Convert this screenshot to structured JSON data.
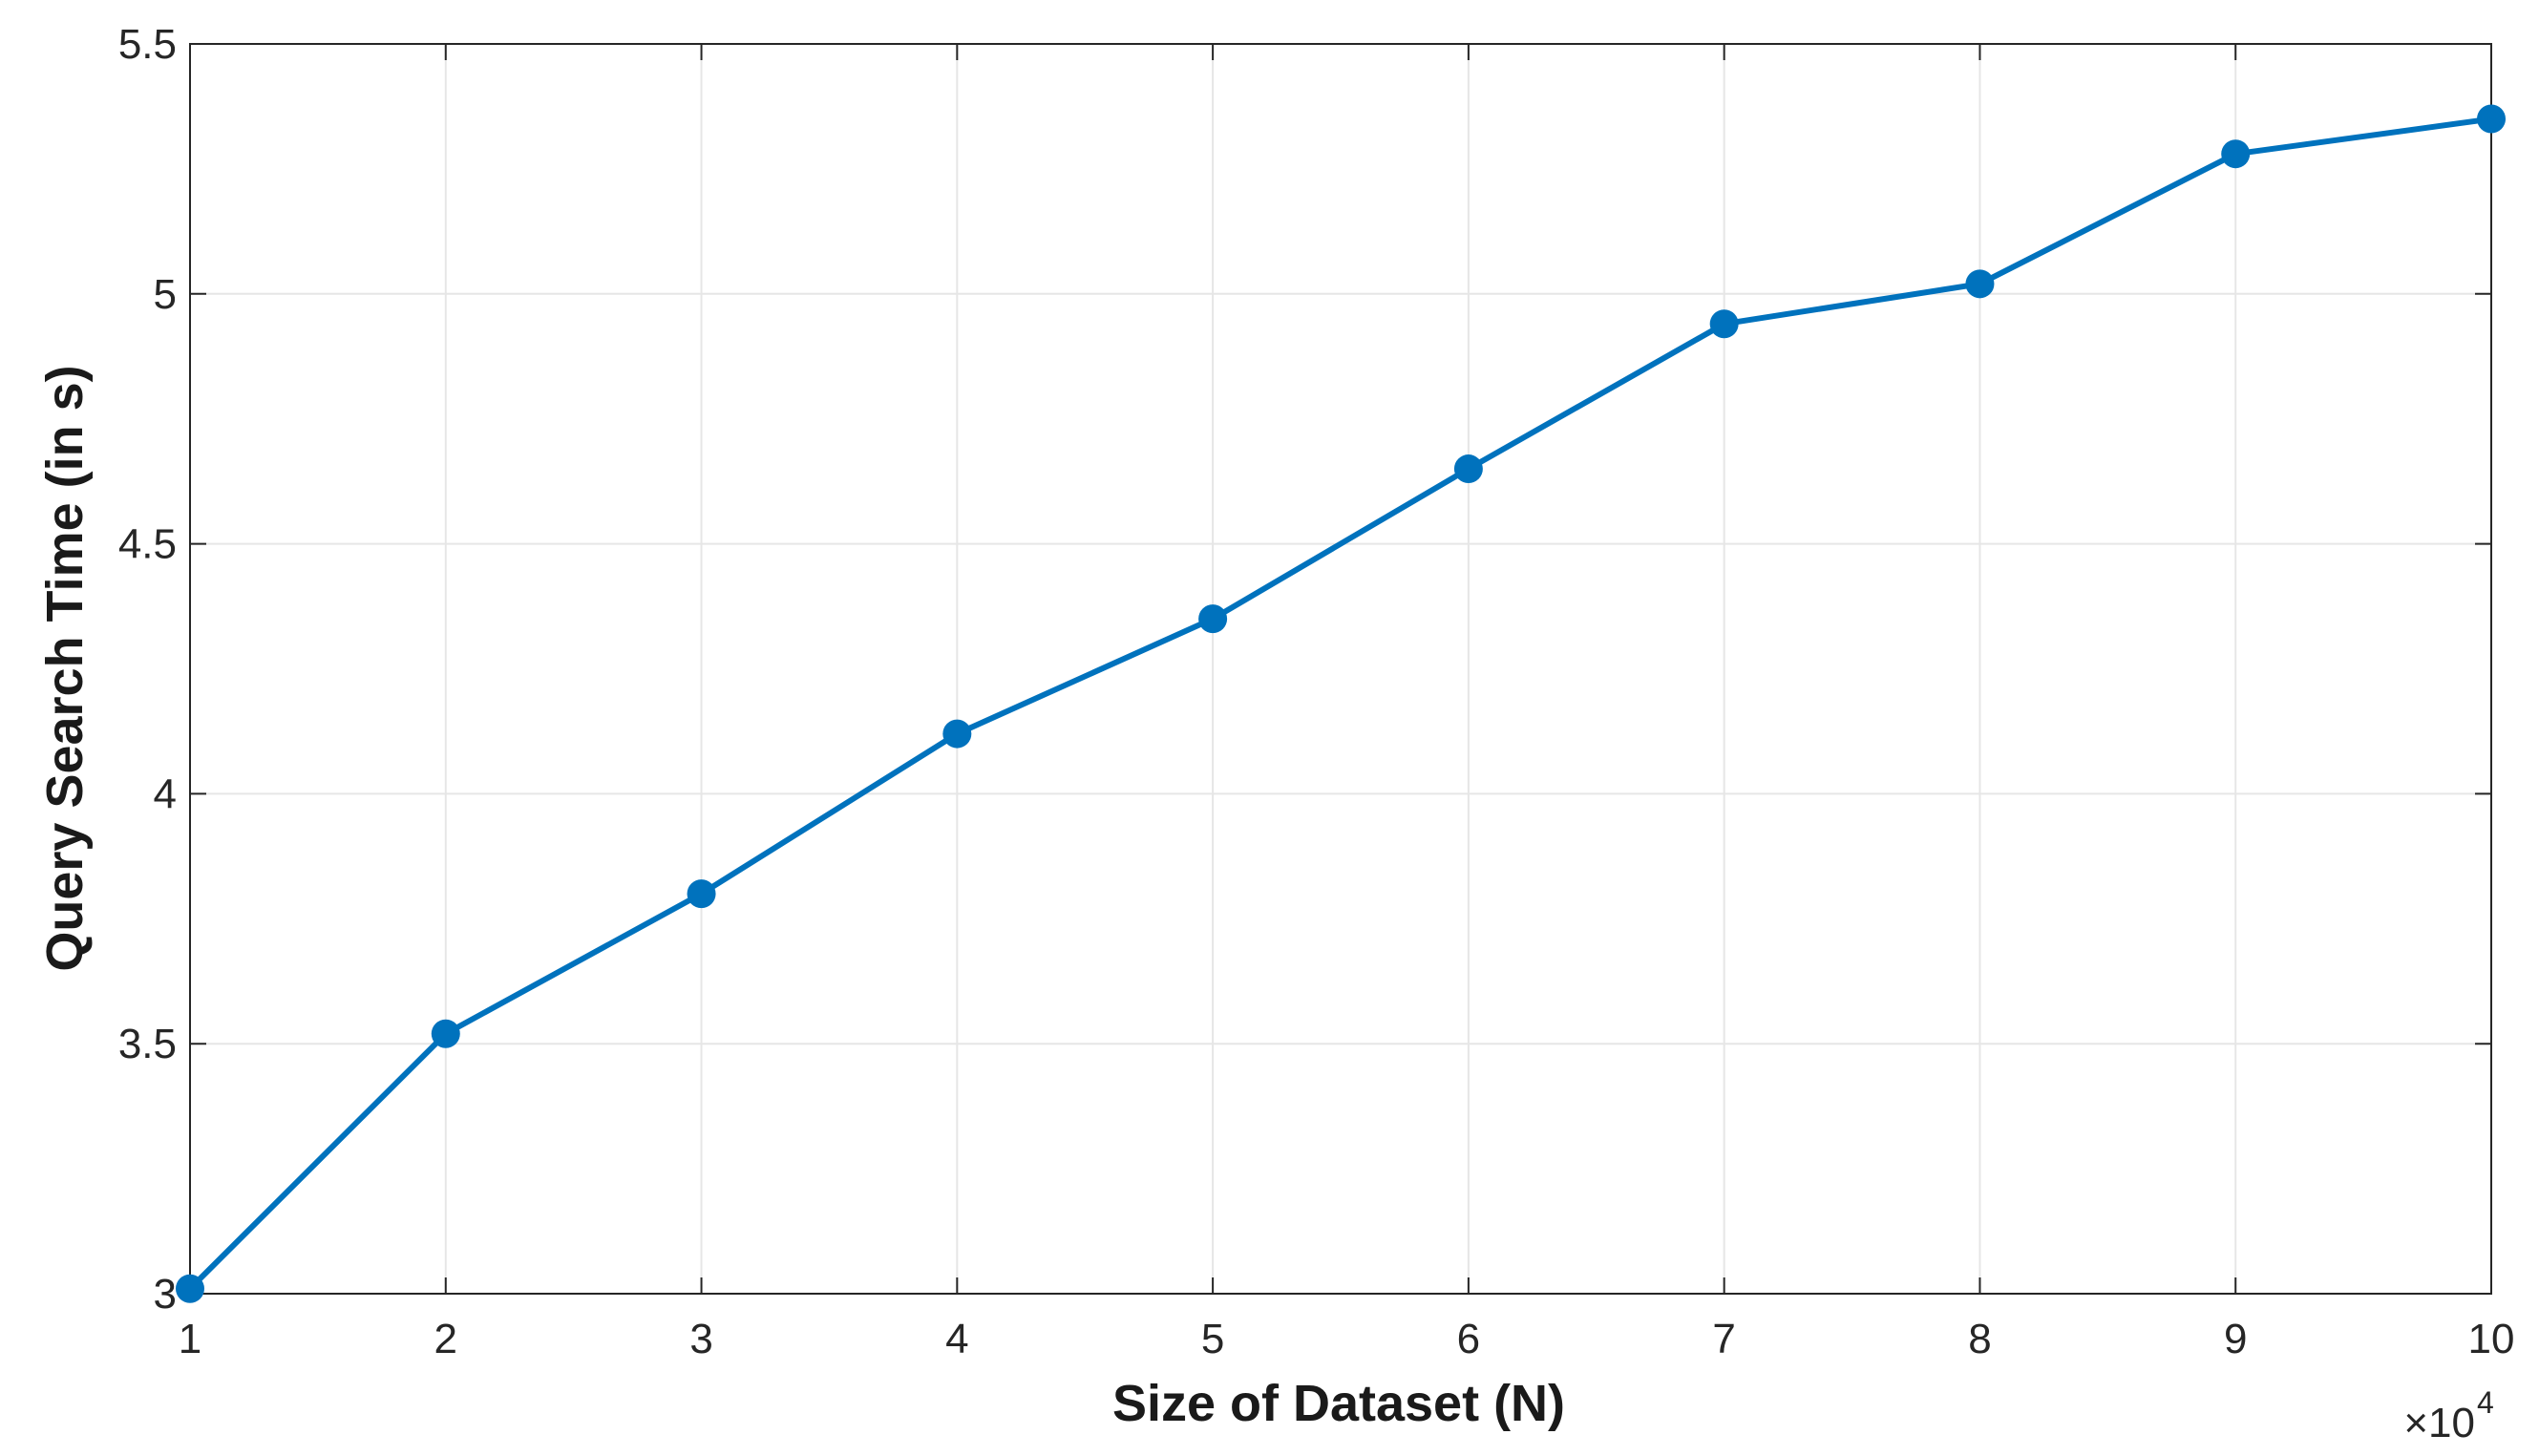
{
  "chart_data": {
    "type": "line",
    "x_label": "Size of Dataset (N)",
    "y_label": "Query Search Time (in s)",
    "x_multiplier": {
      "base": "×10",
      "exponent": "4"
    },
    "x": [
      1,
      2,
      3,
      4,
      5,
      6,
      7,
      8,
      9,
      10
    ],
    "series": [
      {
        "color": "#0072bd",
        "values": [
          3.01,
          3.52,
          3.8,
          4.12,
          4.35,
          4.65,
          4.94,
          5.02,
          5.28,
          5.35
        ]
      }
    ],
    "xlim": [
      1,
      10
    ],
    "xticks": [
      1,
      2,
      3,
      4,
      5,
      6,
      7,
      8,
      9,
      10
    ],
    "ylim": [
      3,
      5.5
    ],
    "yticks": [
      3,
      3.5,
      4,
      4.5,
      5,
      5.5
    ],
    "grid": true
  }
}
